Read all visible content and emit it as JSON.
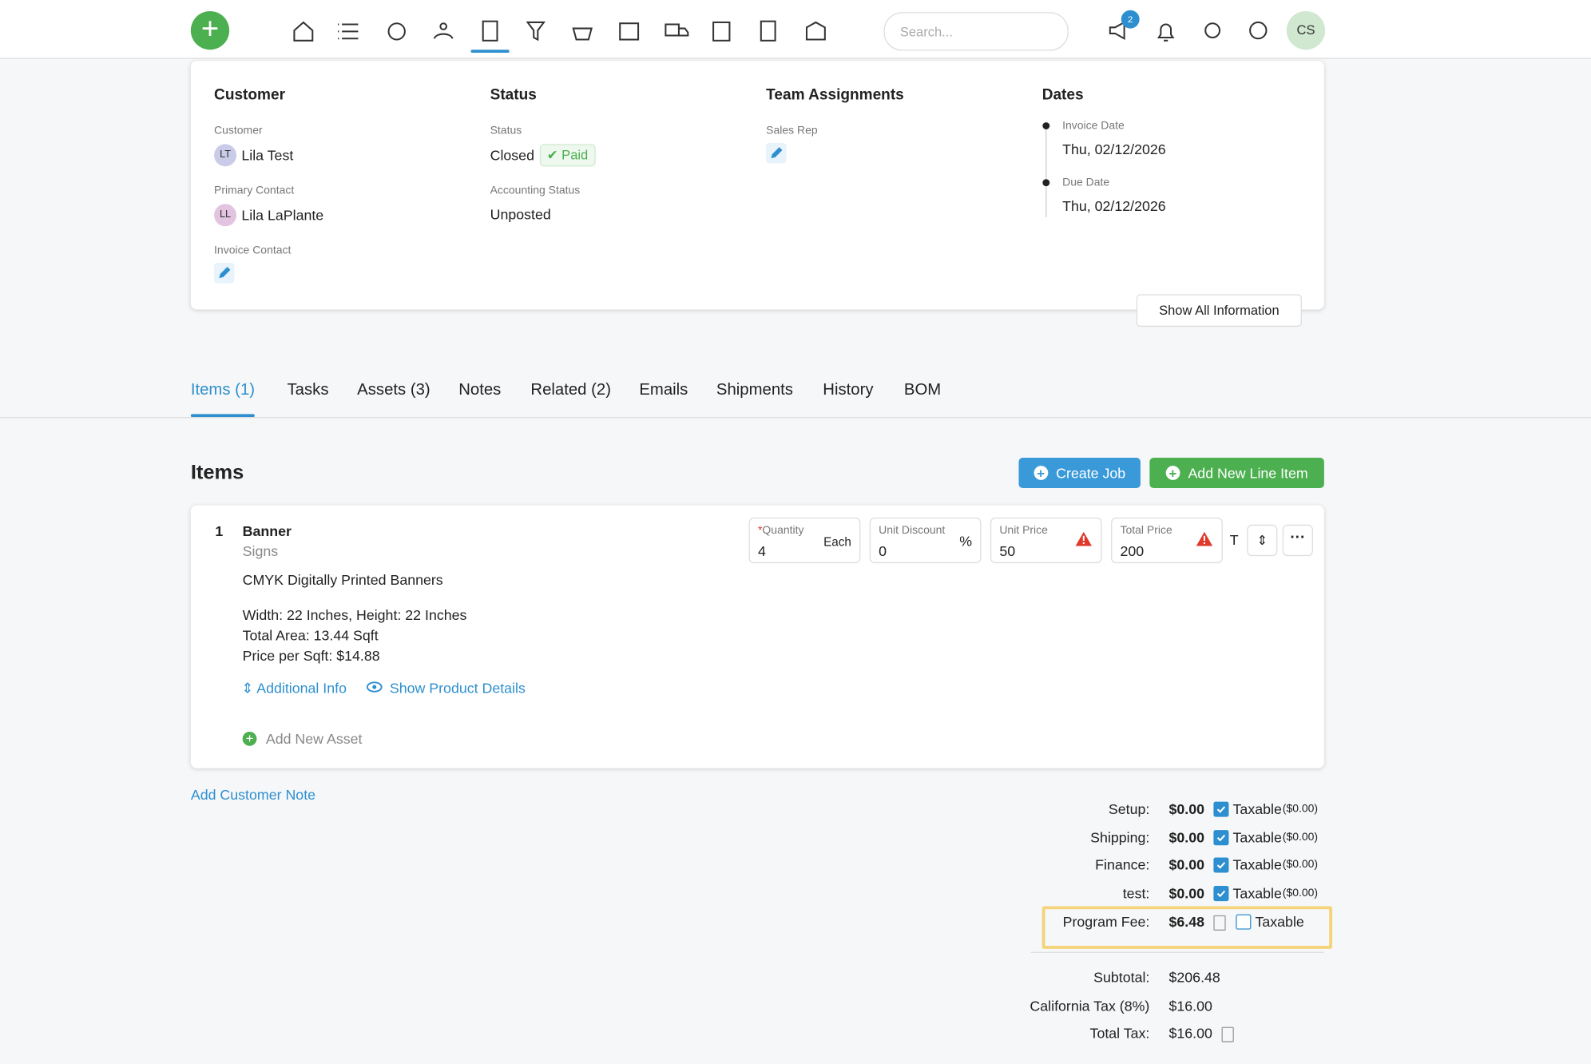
{
  "nav": {
    "search_placeholder": "Search...",
    "notification_badge": "2",
    "user_initials": "CS"
  },
  "summary": {
    "customer": {
      "heading": "Customer",
      "customer_label": "Customer",
      "customer_initials": "LT",
      "customer_name": "Lila Test",
      "primary_contact_label": "Primary Contact",
      "primary_contact_initials": "LL",
      "primary_contact_name": "Lila LaPlante",
      "invoice_contact_label": "Invoice Contact"
    },
    "status": {
      "heading": "Status",
      "status_label": "Status",
      "status_value": "Closed",
      "payment_badge": "✔ Paid",
      "accounting_status_label": "Accounting Status",
      "accounting_status_value": "Unposted"
    },
    "team": {
      "heading": "Team Assignments",
      "sales_rep_label": "Sales Rep"
    },
    "dates": {
      "heading": "Dates",
      "invoice_date_label": "Invoice Date",
      "invoice_date": "Thu, 02/12/2026",
      "due_date_label": "Due Date",
      "due_date": "Thu, 02/12/2026"
    },
    "show_all_button": "Show All Information"
  },
  "tabs": [
    "Items (1)",
    "Tasks",
    "Assets (3)",
    "Notes",
    "Related (2)",
    "Emails",
    "Shipments",
    "History",
    "BOM"
  ],
  "active_tab": 0,
  "items": {
    "heading": "Items",
    "create_job_button": "Create Job",
    "add_line_item_button": "Add New Line Item",
    "line": {
      "number": "1",
      "name": "Banner",
      "category": "Signs",
      "description": "CMYK Digitally Printed Banners",
      "details": [
        "Width: 22 Inches, Height: 22 Inches",
        "Total Area: 13.44 Sqft",
        "Price per Sqft: $14.88"
      ],
      "additional_info_link": "Additional Info",
      "show_details_link": "Show Product Details",
      "add_asset_link": "Add New Asset",
      "quantity_label": "Quantity",
      "quantity": "4",
      "quantity_unit": "Each",
      "unit_discount_label": "Unit Discount",
      "unit_discount": "0",
      "unit_discount_unit": "%",
      "unit_price_label": "Unit Price",
      "unit_price": "50",
      "total_price_label": "Total Price",
      "total_price": "200",
      "tax_code": "T"
    },
    "add_customer_note_link": "Add Customer Note"
  },
  "totals": {
    "charges": [
      {
        "label": "Setup:",
        "amount": "$0.00",
        "taxable": true,
        "taxable_label": "Taxable",
        "tax_amount": "($0.00)"
      },
      {
        "label": "Shipping:",
        "amount": "$0.00",
        "taxable": true,
        "taxable_label": "Taxable",
        "tax_amount": "($0.00)"
      },
      {
        "label": "Finance:",
        "amount": "$0.00",
        "taxable": true,
        "taxable_label": "Taxable",
        "tax_amount": "($0.00)"
      },
      {
        "label": "test:",
        "amount": "$0.00",
        "taxable": true,
        "taxable_label": "Taxable",
        "tax_amount": "($0.00)"
      },
      {
        "label": "Program Fee:",
        "amount": "$6.48",
        "taxable": false,
        "taxable_label": "Taxable",
        "highlighted": true
      }
    ],
    "summary": [
      {
        "label": "Subtotal:",
        "amount": "$206.48"
      },
      {
        "label": "California Tax (8%)",
        "amount": "$16.00"
      },
      {
        "label": "Total Tax:",
        "amount": "$16.00"
      }
    ]
  }
}
